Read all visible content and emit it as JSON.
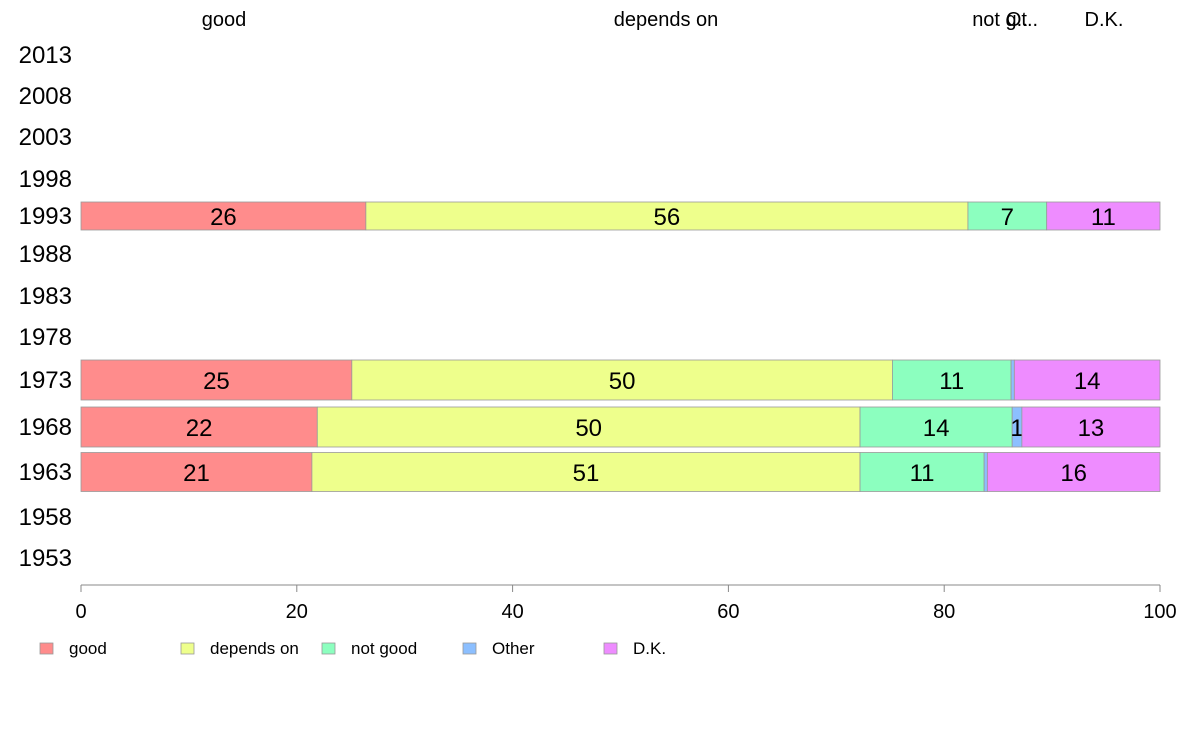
{
  "chart_data": {
    "type": "bar",
    "orientation": "horizontal",
    "stacked": true,
    "categories": [
      "2013",
      "2008",
      "2003",
      "1998",
      "1993",
      "1988",
      "1983",
      "1978",
      "1973",
      "1968",
      "1963",
      "1958",
      "1953"
    ],
    "series": [
      {
        "name": "good",
        "color": "#FF8C8C",
        "values": [
          null,
          null,
          null,
          null,
          26.4,
          null,
          null,
          null,
          25.1,
          21.9,
          21.4,
          null,
          null
        ],
        "labels": [
          "",
          "",
          "",
          "",
          "26",
          "",
          "",
          "",
          "25",
          "22",
          "21",
          "",
          ""
        ]
      },
      {
        "name": "depends on",
        "color": "#EEFF8C",
        "values": [
          null,
          null,
          null,
          null,
          55.8,
          null,
          null,
          null,
          50.1,
          50.3,
          50.8,
          null,
          null
        ],
        "labels": [
          "",
          "",
          "",
          "",
          "56",
          "",
          "",
          "",
          "50",
          "50",
          "51",
          "",
          ""
        ]
      },
      {
        "name": "not good",
        "color": "#8CFFBF",
        "values": [
          null,
          null,
          null,
          null,
          7.3,
          null,
          null,
          null,
          11.0,
          14.1,
          11.5,
          null,
          null
        ],
        "labels": [
          "",
          "",
          "",
          "",
          "7",
          "",
          "",
          "",
          "11",
          "14",
          "11",
          "",
          ""
        ]
      },
      {
        "name": "Other",
        "color": "#8CBFFF",
        "values": [
          null,
          null,
          null,
          null,
          0.0,
          null,
          null,
          null,
          0.3,
          0.9,
          0.3,
          null,
          null
        ],
        "labels": [
          "",
          "",
          "",
          "",
          "",
          "",
          "",
          "",
          "",
          "1",
          "",
          "",
          ""
        ]
      },
      {
        "name": "D.K.",
        "color": "#EE8CFF",
        "values": [
          null,
          null,
          null,
          null,
          10.5,
          null,
          null,
          null,
          13.5,
          12.8,
          16.0,
          null,
          null
        ],
        "labels": [
          "",
          "",
          "",
          "",
          "11",
          "",
          "",
          "",
          "14",
          "13",
          "16",
          "",
          ""
        ]
      }
    ],
    "top_labels": [
      "good",
      "depends on",
      "not g..",
      "Ot..",
      "D.K."
    ],
    "xlim": [
      0,
      100
    ],
    "xticks": [
      "0",
      "20",
      "40",
      "60",
      "80",
      "100"
    ],
    "grid": false,
    "legend_placement": "bottom-left",
    "legend": [
      "good",
      "depends on",
      "not good",
      "Other",
      "D.K."
    ]
  }
}
